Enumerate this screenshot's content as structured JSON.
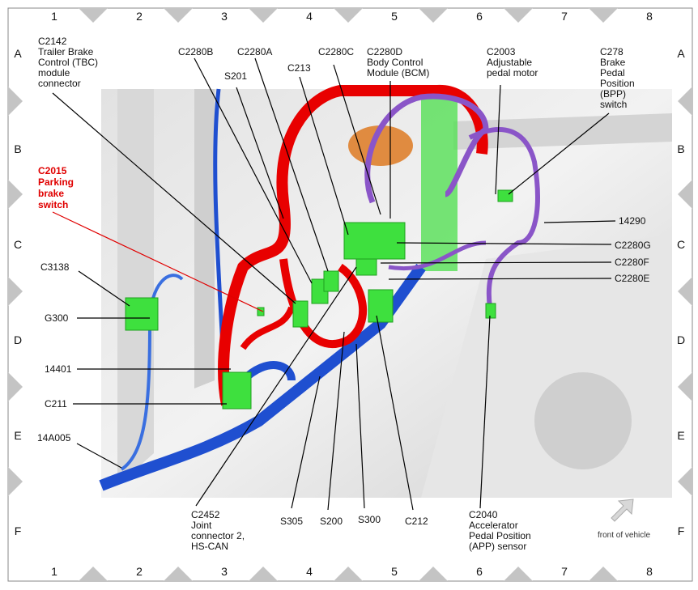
{
  "grid": {
    "columns": [
      "1",
      "2",
      "3",
      "4",
      "5",
      "6",
      "7",
      "8"
    ],
    "rows": [
      "A",
      "B",
      "C",
      "D",
      "E",
      "F"
    ]
  },
  "labels": {
    "c2142": [
      "C2142",
      "Trailer Brake",
      "Control (TBC)",
      "module",
      "connector"
    ],
    "c2280b": "C2280B",
    "c2280a": "C2280A",
    "s201": "S201",
    "c213": "C213",
    "c2280c": "C2280C",
    "c2280d": [
      "C2280D",
      "Body Control",
      "Module (BCM)"
    ],
    "c2003": [
      "C2003",
      "Adjustable",
      "pedal motor"
    ],
    "c278": [
      "C278",
      "Brake",
      "Pedal",
      "Position",
      "(BPP)",
      "switch"
    ],
    "c2015": [
      "C2015",
      "Parking",
      "brake",
      "switch"
    ],
    "w14290": "14290",
    "c3138": "C3138",
    "c2280g": "C2280G",
    "c2280f": "C2280F",
    "c2280e": "C2280E",
    "g300": "G300",
    "w14401": "14401",
    "c211": "C211",
    "w14a005": "14A005",
    "c2452": [
      "C2452",
      "Joint",
      "connector 2,",
      "HS-CAN"
    ],
    "s305": "S305",
    "s200": "S200",
    "s300": "S300",
    "c212": "C212",
    "c2040": [
      "C2040",
      "Accelerator",
      "Pedal Position",
      "(APP) sensor"
    ],
    "front": "front of vehicle"
  },
  "colors": {
    "highlight_label": "#e00000",
    "wire_blue": "#1f4fd0",
    "wire_red": "#e80000",
    "wire_purple": "#8a55c8",
    "connector_green": "#3ee03e"
  },
  "icons": {
    "front_arrow": "arrow-up-right-icon"
  }
}
